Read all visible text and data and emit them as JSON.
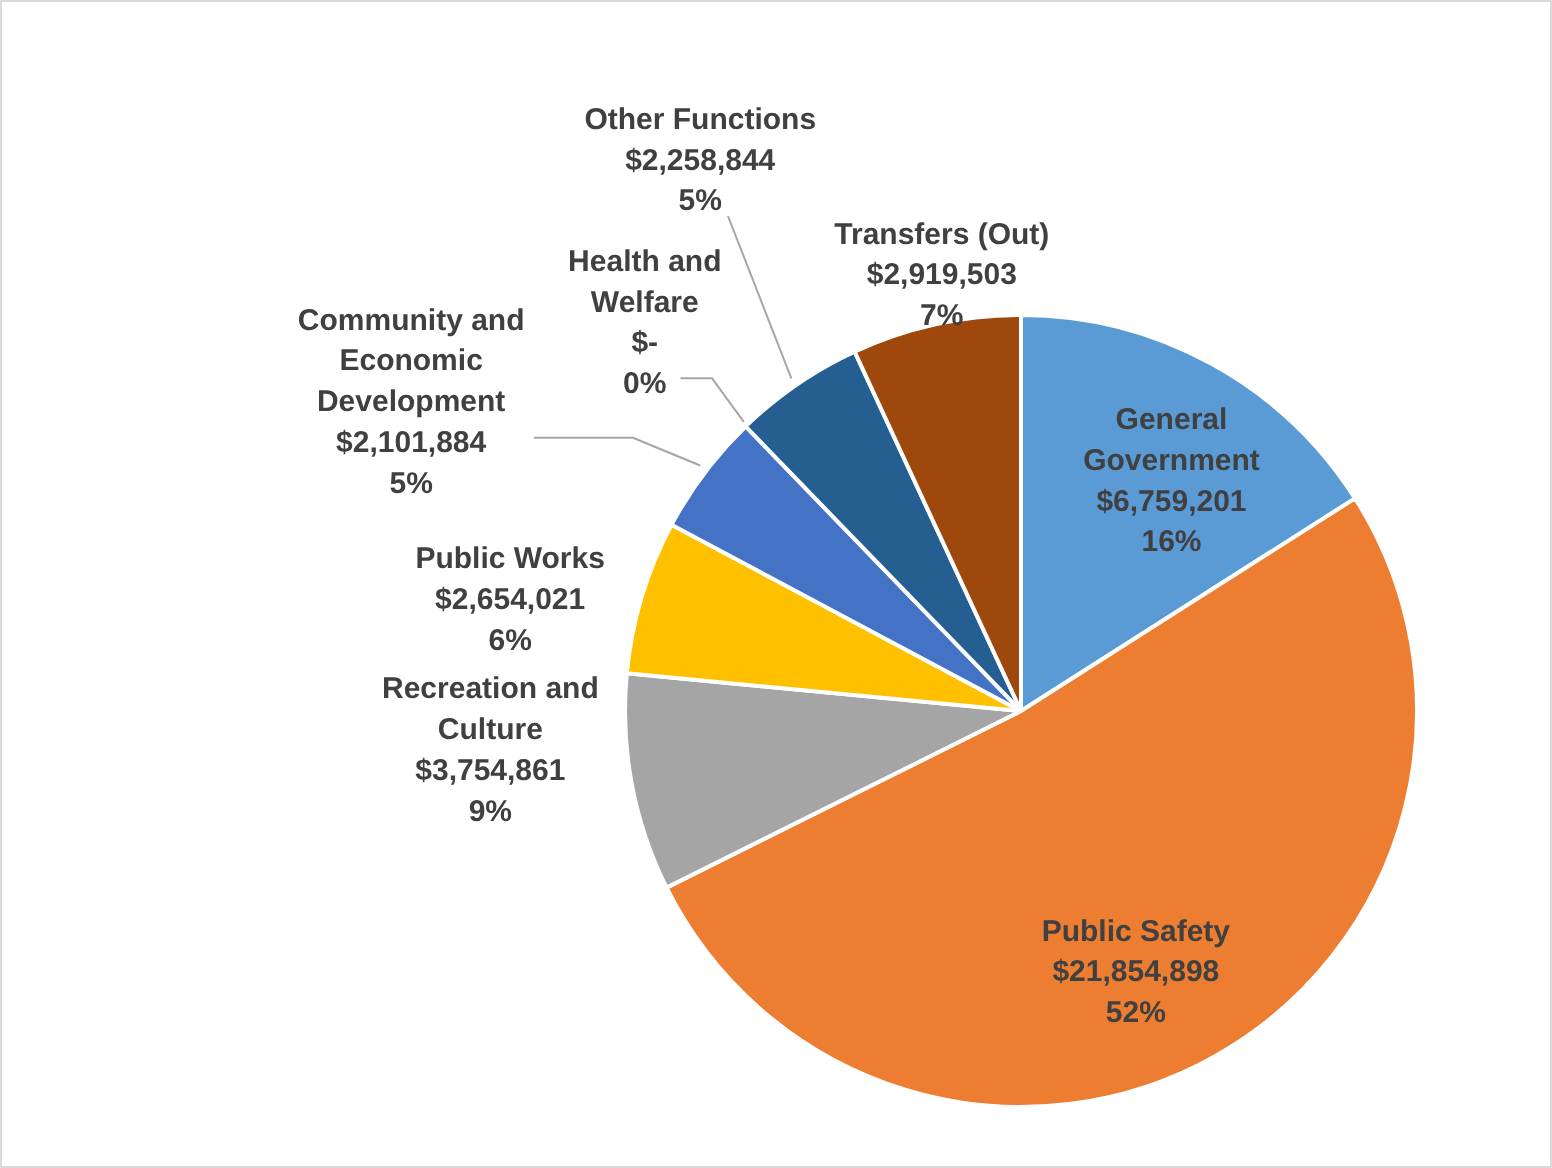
{
  "chart_data": {
    "type": "pie",
    "categories": [
      "General Government",
      "Public Safety",
      "Recreation and Culture",
      "Public Works",
      "Community and Economic Development",
      "Health and Welfare",
      "Other Functions",
      "Transfers (Out)"
    ],
    "values": [
      6759201,
      21854898,
      3754861,
      2654021,
      2101884,
      0,
      2258844,
      2919503
    ],
    "colors": [
      "#5b9bd5",
      "#ed7d31",
      "#a5a5a5",
      "#ffc000",
      "#4472c4",
      "#70ad47",
      "#255e91",
      "#9e480e"
    ],
    "value_labels": [
      "$6,759,201\n16%",
      "$21,854,898\n52%",
      "$3,754,861\n9%",
      "$2,654,021\n6%",
      "$2,101,884\n5%",
      "$-\n0%",
      "$2,258,844\n5%",
      "$2,919,503\n7%"
    ]
  }
}
